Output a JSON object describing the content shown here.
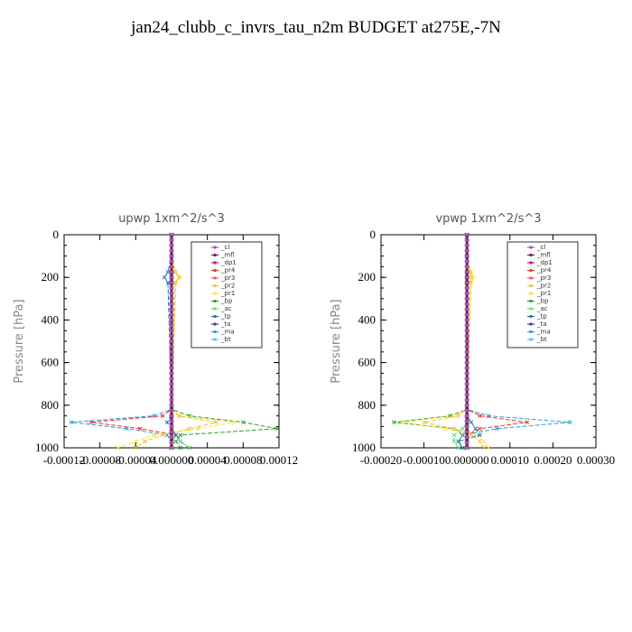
{
  "title": "jan24_clubb_c_invrs_tau_n2m  BUDGET at275E,-7N",
  "legend_entries": [
    "_cl",
    "_mfl",
    "_dp1",
    "_pr4",
    "_pr3",
    "_pr2",
    "_pr1",
    "_bp",
    "_ac",
    "_tp",
    "_ta",
    "_ma",
    "_bt"
  ],
  "series_colors": {
    "_cl": "#9b59b6",
    "_mfl": "#7b1c4a",
    "_dp1": "#c2185b",
    "_pr4": "#e53935",
    "_pr3": "#f06060",
    "_pr2": "#f5c242",
    "_pr1": "#f7e54a",
    "_bp": "#2ca02c",
    "_ac": "#66e066",
    "_tp": "#1f77b4",
    "_ta": "#3a3ab0",
    "_ma": "#2a9fd6",
    "_bt": "#33d6e6"
  },
  "chart_data": [
    {
      "type": "line",
      "title": "upwp   1xm^2/s^3",
      "ylabel": "Pressure [hPa]",
      "xlim": [
        -0.00012,
        0.00012
      ],
      "ylim": [
        1000,
        0
      ],
      "xticks": [
        -0.00012,
        -8e-05,
        -4e-05,
        0.0,
        4e-05,
        8e-05,
        0.00012
      ],
      "xtick_labels": [
        "-0.00012",
        "-0.00008",
        "-0.00004",
        "0.000000",
        "0.00004",
        "0.00008",
        "0.00012"
      ],
      "yticks": [
        0,
        200,
        400,
        600,
        800,
        1000
      ],
      "ytick_labels": [
        "0",
        "200",
        "400",
        "600",
        "800",
        "1000"
      ],
      "legend": "top-right",
      "pressure": [
        0,
        100,
        175,
        200,
        225,
        820,
        850,
        880,
        910,
        940,
        970,
        1000
      ],
      "series": [
        {
          "name": "_bp",
          "x": [
            0,
            0,
            0,
            0,
            0,
            0,
            2e-05,
            8e-05,
            0.000118,
            1e-05,
            5e-06,
            1e-05
          ]
        },
        {
          "name": "_ma",
          "x": [
            0,
            0,
            0,
            0,
            0,
            0,
            -2e-05,
            -0.000112,
            -5e-05,
            -5e-06,
            0,
            0
          ]
        },
        {
          "name": "_pr4",
          "x": [
            0,
            0,
            0,
            0,
            0,
            0,
            -1e-05,
            -9e-05,
            -3.5e-05,
            5e-06,
            0,
            0
          ]
        },
        {
          "name": "_pr1",
          "x": [
            0,
            0,
            5e-06,
            1e-05,
            5e-06,
            0,
            1e-05,
            7e-05,
            3e-05,
            -2e-05,
            -4e-05,
            -6e-05
          ]
        },
        {
          "name": "_pr2",
          "x": [
            0,
            0,
            4e-06,
            8e-06,
            4e-06,
            0,
            8e-06,
            5e-05,
            2e-05,
            -1e-05,
            -3e-05,
            -4e-05
          ]
        },
        {
          "name": "_tp",
          "x": [
            0,
            0,
            -4e-06,
            -8e-06,
            -4e-06,
            0,
            0,
            -5e-06,
            0,
            5e-06,
            1e-05,
            2e-05
          ]
        },
        {
          "name": "_ac",
          "x": [
            0,
            0,
            0,
            0,
            0,
            0,
            0,
            0,
            0,
            0,
            1e-05,
            2e-05
          ]
        },
        {
          "name": "_mfl",
          "x": [
            0,
            0,
            0,
            0,
            0,
            0,
            0,
            0,
            0,
            0,
            0,
            0
          ]
        }
      ]
    },
    {
      "type": "line",
      "title": "vpwp   1xm^2/s^3",
      "ylabel": "Pressure [hPa]",
      "xlim": [
        -0.0002,
        0.0003
      ],
      "ylim": [
        1000,
        0
      ],
      "xticks": [
        -0.0002,
        -0.0001,
        0.0,
        0.0001,
        0.0002,
        0.0003
      ],
      "xtick_labels": [
        "-0.00020",
        "-0.00010",
        "0.000000",
        "0.00010",
        "0.00020",
        "0.00030"
      ],
      "yticks": [
        0,
        200,
        400,
        600,
        800,
        1000
      ],
      "ytick_labels": [
        "0",
        "200",
        "400",
        "600",
        "800",
        "1000"
      ],
      "legend": "top-right",
      "pressure": [
        0,
        100,
        175,
        200,
        225,
        820,
        850,
        880,
        910,
        940,
        970,
        1000
      ],
      "series": [
        {
          "name": "_bp",
          "x": [
            0,
            0,
            0,
            0,
            0,
            0,
            -4e-05,
            -0.00017,
            -3e-05,
            -1e-05,
            -2e-05,
            -1e-05
          ]
        },
        {
          "name": "_ma",
          "x": [
            0,
            0,
            0,
            0,
            0,
            0,
            5e-05,
            0.00024,
            7e-05,
            -1e-05,
            0,
            0
          ]
        },
        {
          "name": "_pr4",
          "x": [
            0,
            0,
            0,
            0,
            0,
            0,
            3e-05,
            0.00014,
            3e-05,
            0,
            0,
            0
          ]
        },
        {
          "name": "_pr1",
          "x": [
            0,
            0,
            1e-05,
            1.5e-05,
            1e-05,
            0,
            -3e-05,
            -0.00015,
            -5e-05,
            2e-05,
            4e-05,
            5e-05
          ]
        },
        {
          "name": "_pr2",
          "x": [
            0,
            0,
            8e-06,
            1e-05,
            8e-06,
            0,
            -2e-05,
            -0.0001,
            -3e-05,
            1e-05,
            3e-05,
            4e-05
          ]
        },
        {
          "name": "_tp",
          "x": [
            0,
            0,
            0,
            0,
            0,
            0,
            0,
            1e-05,
            2e-05,
            3e-05,
            -2e-05,
            -1e-05
          ]
        },
        {
          "name": "_ac",
          "x": [
            0,
            0,
            0,
            0,
            0,
            0,
            0,
            0,
            -1e-05,
            -3e-05,
            -3e-05,
            -2e-05
          ]
        },
        {
          "name": "_mfl",
          "x": [
            0,
            0,
            0,
            0,
            0,
            0,
            0,
            0,
            0,
            0,
            0,
            0
          ]
        }
      ]
    }
  ]
}
